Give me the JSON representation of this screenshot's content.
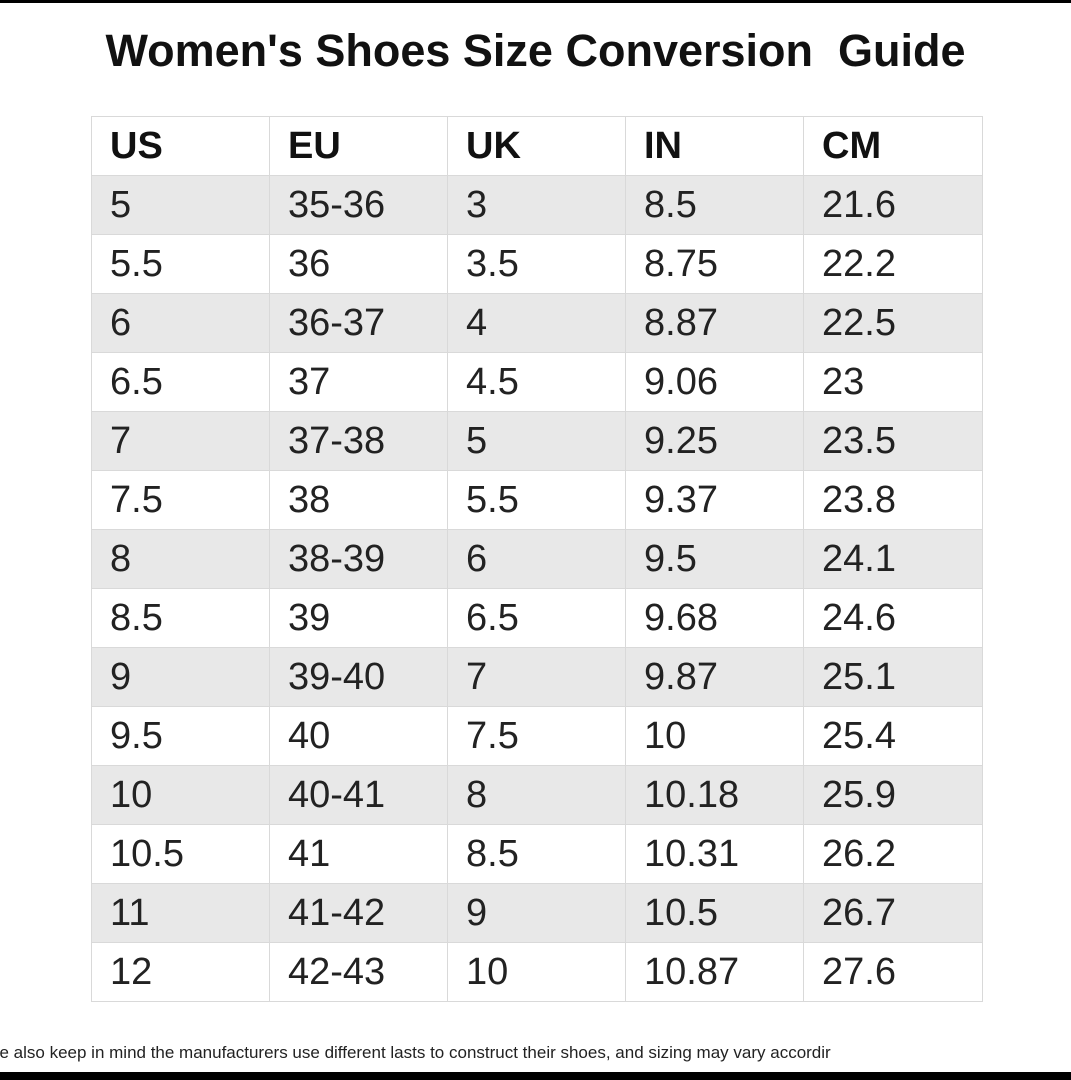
{
  "title": "Women's Shoes Size Conversion  Guide",
  "table": {
    "headers": [
      "US",
      "EU",
      "UK",
      "IN",
      "CM"
    ],
    "rows": [
      [
        "5",
        "35-36",
        "3",
        "8.5",
        "21.6"
      ],
      [
        "5.5",
        "36",
        "3.5",
        "8.75",
        "22.2"
      ],
      [
        "6",
        "36-37",
        "4",
        "8.87",
        "22.5"
      ],
      [
        "6.5",
        "37",
        "4.5",
        "9.06",
        "23"
      ],
      [
        "7",
        "37-38",
        "5",
        "9.25",
        "23.5"
      ],
      [
        "7.5",
        "38",
        "5.5",
        "9.37",
        "23.8"
      ],
      [
        "8",
        "38-39",
        "6",
        "9.5",
        "24.1"
      ],
      [
        "8.5",
        "39",
        "6.5",
        "9.68",
        "24.6"
      ],
      [
        "9",
        "39-40",
        "7",
        "9.87",
        "25.1"
      ],
      [
        "9.5",
        "40",
        "7.5",
        "10",
        "25.4"
      ],
      [
        "10",
        "40-41",
        "8",
        "10.18",
        "25.9"
      ],
      [
        "10.5",
        "41",
        "8.5",
        "10.31",
        "26.2"
      ],
      [
        "11",
        "41-42",
        "9",
        "10.5",
        "26.7"
      ],
      [
        "12",
        "42-43",
        "10",
        "10.87",
        "27.6"
      ]
    ]
  },
  "footnote": "se also keep in mind the manufacturers use different lasts to construct their shoes, and sizing may vary accordir",
  "colors": {
    "frame": "#000000",
    "background": "#ffffff",
    "stripe": "#e8e8e8",
    "grid": "#d9d9d9",
    "text": "#222222"
  }
}
